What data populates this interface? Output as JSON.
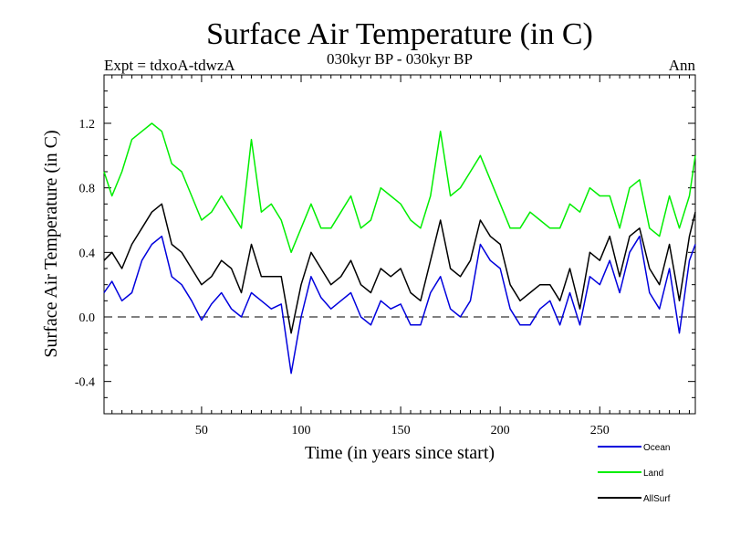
{
  "chart_data": {
    "type": "line",
    "title": "Surface Air Temperature (in C)",
    "subtitle_left": "Expt = tdxoA-tdwzA",
    "subtitle_center": "030kyr BP - 030kyr BP",
    "subtitle_right": "Ann",
    "xlabel": "Time (in years since start)",
    "ylabel": "Surface Air Temperature (in C)",
    "xlim": [
      1,
      298
    ],
    "ylim": [
      -0.6,
      1.5
    ],
    "xticks": [
      50,
      100,
      150,
      200,
      250
    ],
    "xtick_labels": [
      "50",
      "100",
      "150",
      "200",
      "250"
    ],
    "yticks": [
      -0.4,
      0.0,
      0.4,
      0.8,
      1.2
    ],
    "ytick_labels": [
      "-0.4",
      "0.0",
      "0.4",
      "0.8",
      "1.2"
    ],
    "zero_line": "dashed",
    "grid": false,
    "legend_position": "bottom-right, below plot",
    "series": [
      {
        "name": "Ocean",
        "color": "#0000dd",
        "x": [
          1,
          5,
          10,
          15,
          20,
          25,
          30,
          35,
          40,
          45,
          50,
          55,
          60,
          65,
          70,
          75,
          80,
          85,
          90,
          95,
          100,
          105,
          110,
          115,
          120,
          125,
          130,
          135,
          140,
          145,
          150,
          155,
          160,
          165,
          170,
          175,
          180,
          185,
          190,
          195,
          200,
          205,
          210,
          215,
          220,
          225,
          230,
          235,
          240,
          245,
          250,
          255,
          260,
          265,
          270,
          275,
          280,
          285,
          290,
          295,
          298
        ],
        "values": [
          0.15,
          0.22,
          0.1,
          0.15,
          0.35,
          0.45,
          0.5,
          0.25,
          0.2,
          0.1,
          -0.02,
          0.08,
          0.15,
          0.05,
          0.0,
          0.15,
          0.1,
          0.05,
          0.08,
          -0.35,
          0.0,
          0.25,
          0.12,
          0.05,
          0.1,
          0.15,
          0.0,
          -0.05,
          0.1,
          0.05,
          0.08,
          -0.05,
          -0.05,
          0.15,
          0.25,
          0.05,
          0.0,
          0.1,
          0.45,
          0.35,
          0.3,
          0.05,
          -0.05,
          -0.05,
          0.05,
          0.1,
          -0.05,
          0.15,
          -0.05,
          0.25,
          0.2,
          0.35,
          0.15,
          0.4,
          0.5,
          0.15,
          0.05,
          0.3,
          -0.1,
          0.35,
          0.45
        ]
      },
      {
        "name": "Land",
        "color": "#00ee00",
        "x": [
          1,
          5,
          10,
          15,
          20,
          25,
          30,
          35,
          40,
          45,
          50,
          55,
          60,
          65,
          70,
          75,
          80,
          85,
          90,
          95,
          100,
          105,
          110,
          115,
          120,
          125,
          130,
          135,
          140,
          145,
          150,
          155,
          160,
          165,
          170,
          175,
          180,
          185,
          190,
          195,
          200,
          205,
          210,
          215,
          220,
          225,
          230,
          235,
          240,
          245,
          250,
          255,
          260,
          265,
          270,
          275,
          280,
          285,
          290,
          295,
          298
        ],
        "values": [
          0.9,
          0.75,
          0.9,
          1.1,
          1.15,
          1.2,
          1.15,
          0.95,
          0.9,
          0.75,
          0.6,
          0.65,
          0.75,
          0.65,
          0.55,
          1.1,
          0.65,
          0.7,
          0.6,
          0.4,
          0.55,
          0.7,
          0.55,
          0.55,
          0.65,
          0.75,
          0.55,
          0.6,
          0.8,
          0.75,
          0.7,
          0.6,
          0.55,
          0.75,
          1.15,
          0.75,
          0.8,
          0.9,
          1.0,
          0.85,
          0.7,
          0.55,
          0.55,
          0.65,
          0.6,
          0.55,
          0.55,
          0.7,
          0.65,
          0.8,
          0.75,
          0.75,
          0.55,
          0.8,
          0.85,
          0.55,
          0.5,
          0.75,
          0.55,
          0.75,
          1.0
        ]
      },
      {
        "name": "AllSurf",
        "color": "#000000",
        "x": [
          1,
          5,
          10,
          15,
          20,
          25,
          30,
          35,
          40,
          45,
          50,
          55,
          60,
          65,
          70,
          75,
          80,
          85,
          90,
          95,
          100,
          105,
          110,
          115,
          120,
          125,
          130,
          135,
          140,
          145,
          150,
          155,
          160,
          165,
          170,
          175,
          180,
          185,
          190,
          195,
          200,
          205,
          210,
          215,
          220,
          225,
          230,
          235,
          240,
          245,
          250,
          255,
          260,
          265,
          270,
          275,
          280,
          285,
          290,
          295,
          298
        ],
        "values": [
          0.35,
          0.4,
          0.3,
          0.45,
          0.55,
          0.65,
          0.7,
          0.45,
          0.4,
          0.3,
          0.2,
          0.25,
          0.35,
          0.3,
          0.15,
          0.45,
          0.25,
          0.25,
          0.25,
          -0.1,
          0.2,
          0.4,
          0.3,
          0.2,
          0.25,
          0.35,
          0.2,
          0.15,
          0.3,
          0.25,
          0.3,
          0.15,
          0.1,
          0.35,
          0.6,
          0.3,
          0.25,
          0.35,
          0.6,
          0.5,
          0.45,
          0.2,
          0.1,
          0.15,
          0.2,
          0.2,
          0.1,
          0.3,
          0.05,
          0.4,
          0.35,
          0.5,
          0.25,
          0.5,
          0.55,
          0.3,
          0.2,
          0.45,
          0.1,
          0.5,
          0.65
        ]
      }
    ]
  }
}
